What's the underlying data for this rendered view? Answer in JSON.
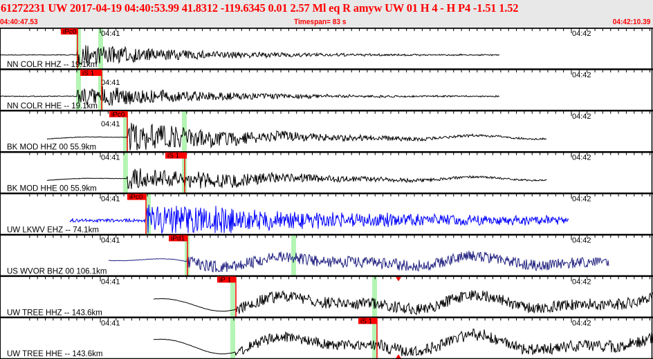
{
  "header": {
    "title": "61272231 UW 2017-04-19 04:40:53.99   41.8312 -119.6345   0.01  2.57 Ml  eq  R amyw     UW 01  H   4  -  H P4   -1.51  1.52",
    "start_time": "04:40:47.53",
    "timespan": "Timespan=  83 s",
    "end_time": "04:42:10.39"
  },
  "time_labels": [
    "04:41",
    "04:42"
  ],
  "colors": {
    "header_text": "#ff0000",
    "pick": "#ff0000",
    "window": "#b4f5b4",
    "trace_black": "#000000",
    "trace_blue": "#0000ff",
    "trace_navy": "#202080"
  },
  "channels": [
    {
      "label": "NN COLR HHZ -- 19.1km",
      "pick": "iPc0",
      "color": "#000000"
    },
    {
      "label": "NN COLR HHE -- 19.1km",
      "pick": "iS 1",
      "color": "#000000"
    },
    {
      "label": "BK MOD HHZ 00 55.9km",
      "pick": "iPc0",
      "color": "#000000"
    },
    {
      "label": "BK MOD HHE 00 55.9km",
      "pick": "iS 1",
      "color": "#000000"
    },
    {
      "label": "UW LKWV EHZ -- 74.1km",
      "pick": "iPc0",
      "color": "#0000ff"
    },
    {
      "label": "US WVOR BHZ 00 106.1km",
      "pick": "iPd1",
      "color": "#202080"
    },
    {
      "label": "UW TREE HHZ -- 143.6km",
      "pick": "iP 1",
      "color": "#000000"
    },
    {
      "label": "UW TREE HHE -- 143.6km",
      "pick": "iS 1",
      "color": "#000000"
    }
  ]
}
